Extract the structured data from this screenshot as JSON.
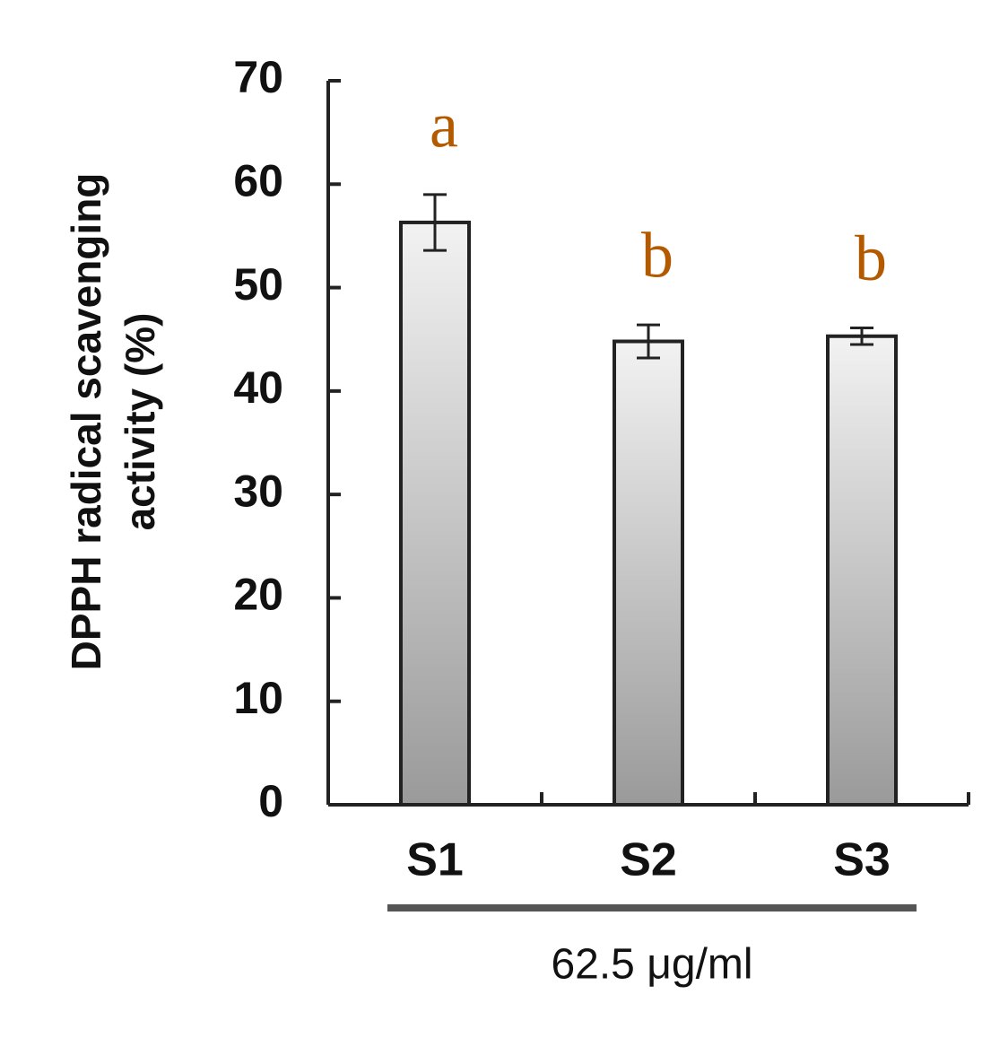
{
  "chart_data": {
    "type": "bar",
    "ylabel": [
      "DPPH radical scavenging",
      "activity (%)"
    ],
    "xlabel": "62.5 μg/ml",
    "categories": [
      "S1",
      "S2",
      "S3"
    ],
    "values": [
      56.3,
      44.8,
      45.3
    ],
    "errors": [
      2.7,
      1.6,
      0.8
    ],
    "annotations": [
      "a",
      "b",
      "b"
    ],
    "color": "#9a9a9a",
    "ylim": [
      0,
      70
    ],
    "yticks": [
      0,
      10,
      20,
      30,
      40,
      50,
      60,
      70
    ],
    "grid": false
  }
}
